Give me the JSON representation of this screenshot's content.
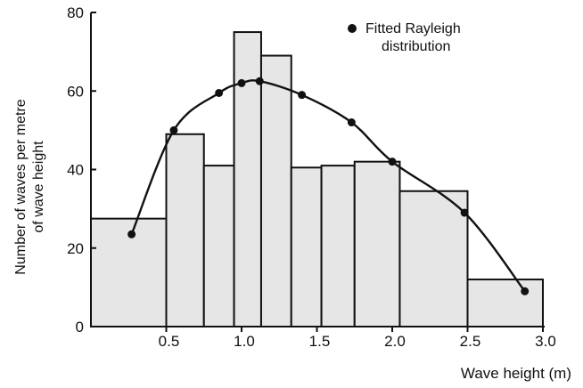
{
  "chart_data": {
    "type": "bar",
    "title": "",
    "xlabel": "Wave height (m)",
    "ylabel": "Number of waves per metre of wave height",
    "ylabel_lines": [
      "Number of waves per metre",
      "of wave height"
    ],
    "xlim": [
      0,
      3.0
    ],
    "ylim": [
      0,
      80
    ],
    "grid": false,
    "legend_position": "top-right",
    "x_ticks": [
      0.5,
      1.0,
      1.5,
      2.0,
      2.5,
      3.0
    ],
    "x_tick_labels": [
      "0.5",
      "1.0",
      "1.5",
      "2.0",
      "2.5",
      "3.0"
    ],
    "y_ticks": [
      0,
      20,
      40,
      60,
      80
    ],
    "y_tick_labels": [
      "0",
      "20",
      "40",
      "60",
      "80"
    ],
    "bins": [
      {
        "x0": 0.0,
        "x1": 0.5,
        "value": 27.5
      },
      {
        "x0": 0.5,
        "x1": 0.75,
        "value": 49
      },
      {
        "x0": 0.75,
        "x1": 0.95,
        "value": 41
      },
      {
        "x0": 0.95,
        "x1": 1.13,
        "value": 75
      },
      {
        "x0": 1.13,
        "x1": 1.33,
        "value": 69
      },
      {
        "x0": 1.33,
        "x1": 1.53,
        "value": 40.5
      },
      {
        "x0": 1.53,
        "x1": 1.75,
        "value": 41
      },
      {
        "x0": 1.75,
        "x1": 2.05,
        "value": 42
      },
      {
        "x0": 2.05,
        "x1": 2.5,
        "value": 34.5
      },
      {
        "x0": 2.5,
        "x1": 3.0,
        "value": 12
      }
    ],
    "series": [
      {
        "name": "Fitted Rayleigh distribution",
        "name_lines": [
          "Fitted Rayleigh",
          "distribution"
        ],
        "type": "line",
        "x": [
          0.27,
          0.55,
          0.85,
          1.0,
          1.12,
          1.4,
          1.73,
          2.0,
          2.48,
          2.88
        ],
        "y": [
          23.5,
          50,
          59.5,
          62,
          62.5,
          59,
          52,
          42,
          29,
          9
        ]
      }
    ],
    "colors": {
      "bar_fill": "#e6e6e6",
      "bar_stroke": "#111111",
      "line": "#111111"
    }
  }
}
